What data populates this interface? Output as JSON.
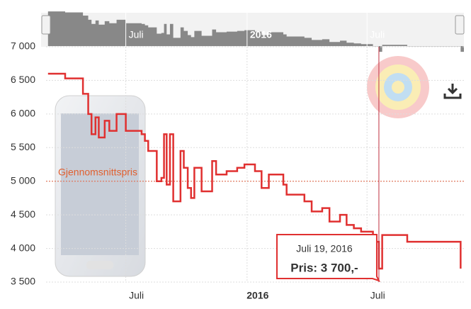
{
  "chart_data": {
    "type": "line",
    "step": true,
    "x": [
      63,
      89,
      116,
      124,
      129,
      135,
      140,
      149,
      156,
      167,
      181,
      205,
      210,
      215,
      228,
      235,
      239,
      243,
      248,
      253,
      264,
      269,
      275,
      280,
      285,
      296,
      312,
      318,
      334,
      350,
      361,
      377,
      387,
      398,
      420,
      425,
      452,
      463,
      479,
      490,
      506,
      516,
      527,
      538,
      556,
      565,
      570,
      608,
      689
    ],
    "series": [
      {
        "color": "#e03030",
        "values": [
          6600,
          6530,
          6300,
          6000,
          5700,
          5950,
          5650,
          5900,
          5750,
          6000,
          5750,
          5700,
          5600,
          5450,
          5000,
          5050,
          5700,
          4950,
          5700,
          4700,
          5450,
          5200,
          4900,
          4750,
          5200,
          4850,
          5300,
          5100,
          5150,
          5200,
          5250,
          5150,
          4900,
          5100,
          4950,
          4800,
          4700,
          4550,
          4600,
          4400,
          4500,
          4350,
          4300,
          4250,
          4100,
          3700,
          4200,
          4100,
          3700
        ]
      }
    ],
    "xlim": [
      60,
      694
    ],
    "xticks": [
      {
        "value": 181,
        "label": "Juli"
      },
      {
        "value": 365,
        "label": "2016"
      },
      {
        "value": 547,
        "label": "Juli"
      }
    ],
    "ylim": [
      3500,
      7000
    ],
    "yticks": [
      {
        "value": 3500,
        "label": "3 500"
      },
      {
        "value": 4000,
        "label": "4 000"
      },
      {
        "value": 4500,
        "label": "4 500"
      },
      {
        "value": 5000,
        "label": "5 000"
      },
      {
        "value": 5500,
        "label": "5 500"
      },
      {
        "value": 6000,
        "label": "6 000"
      },
      {
        "value": 6500,
        "label": "6 500"
      },
      {
        "value": 7000,
        "label": "7 000"
      }
    ],
    "grid": true,
    "average": {
      "value": 5000,
      "label": "Gjennomsnittspris"
    },
    "tooltip": {
      "x": 565,
      "date": "Juli 19, 2016",
      "price": "Pris: 3 700,-"
    }
  }
}
